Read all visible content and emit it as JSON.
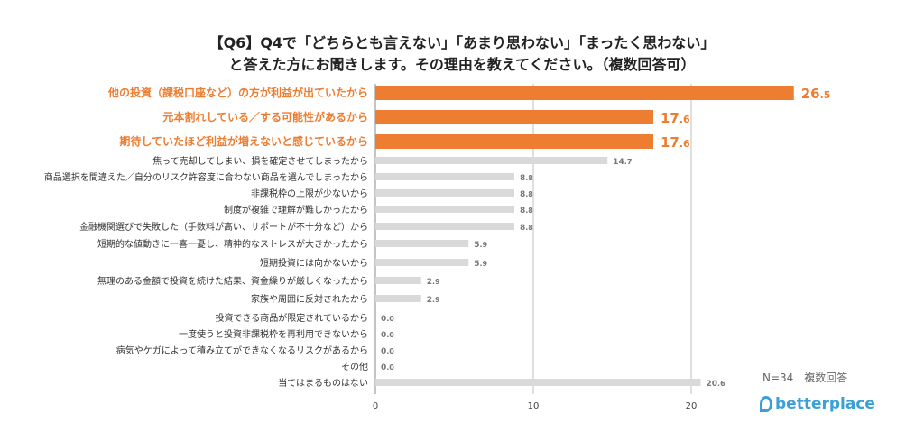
{
  "chart_data": {
    "type": "bar",
    "orientation": "horizontal",
    "title": "【Q6】Q4で「どちらとも言えない」「あまり思わない」「まったく思わない」",
    "subtitle": "と答えた方にお聞きします。その理由を教えてください。（複数回答可）",
    "categories": [
      "他の投資（課税口座など）の方が利益が出ていたから",
      "元本割れしている／する可能性があるから",
      "期待していたほど利益が増えないと感じているから",
      "焦って売却してしまい、損を確定させてしまったから",
      "商品選択を間違えた／自分のリスク許容度に合わない商品を選んでしまったから",
      "非課税枠の上限が少ないから",
      "制度が複雑で理解が難しかったから",
      "金融機関選びで失敗した（手数料が高い、サポートが不十分など）から",
      "短期的な値動きに一喜一憂し、精神的なストレスが大きかったから",
      "短期投資には向かないから",
      "無理のある金額で投資を続けた結果、資金繰りが厳しくなったから",
      "家族や周囲に反対されたから",
      "投資できる商品が限定されているから",
      "一度使うと投資非課税枠を再利用できないから",
      "病気やケガによって積み立てができなくなるリスクがあるから",
      "その他",
      "当てはまるものはない"
    ],
    "values": [
      26.5,
      17.6,
      17.6,
      14.7,
      8.8,
      8.8,
      8.8,
      8.8,
      5.9,
      5.9,
      2.9,
      2.9,
      0.0,
      0.0,
      0.0,
      0.0,
      20.6
    ],
    "highlight_count": 3,
    "xlim": [
      0,
      30
    ],
    "xticks": [
      0,
      10,
      20
    ],
    "grid": true,
    "colors": {
      "highlight": "#ed7d31",
      "normal": "#d9d9d9",
      "highlight_text": "#ed7d31",
      "normal_text": "#333333"
    }
  },
  "note": "N=34　複数回答",
  "logo": "betterplace"
}
